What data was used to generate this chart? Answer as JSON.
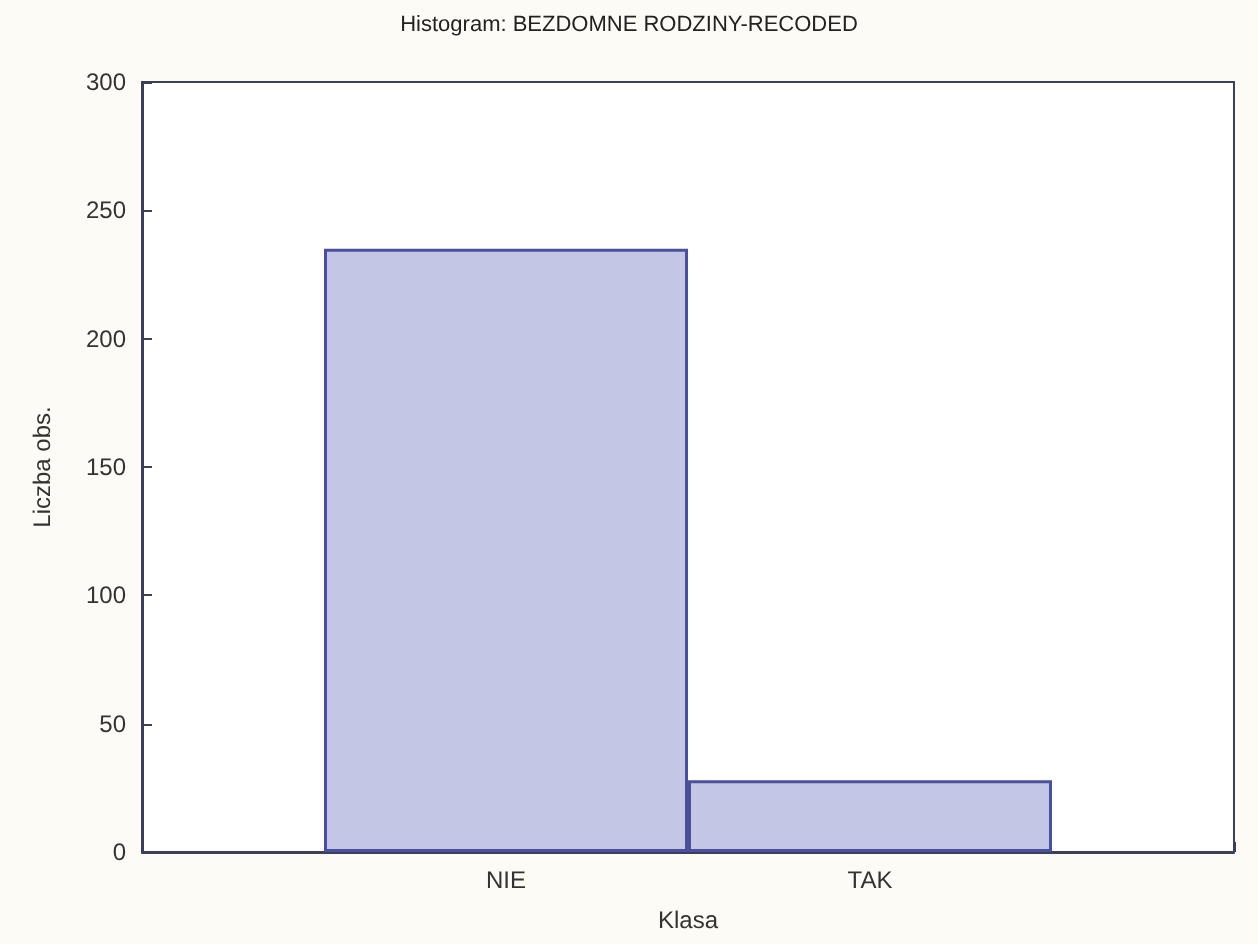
{
  "chart_data": {
    "type": "bar",
    "title": "Histogram: BEZDOMNE RODZINY-RECODED",
    "xlabel": "Klasa",
    "ylabel": "Liczba obs.",
    "categories": [
      "NIE",
      "TAK"
    ],
    "values": [
      235,
      28
    ],
    "color": "#c4c6e6",
    "ylim": [
      0,
      300
    ],
    "yticks": [
      0,
      50,
      100,
      150,
      200,
      250,
      300
    ],
    "grid": false
  }
}
